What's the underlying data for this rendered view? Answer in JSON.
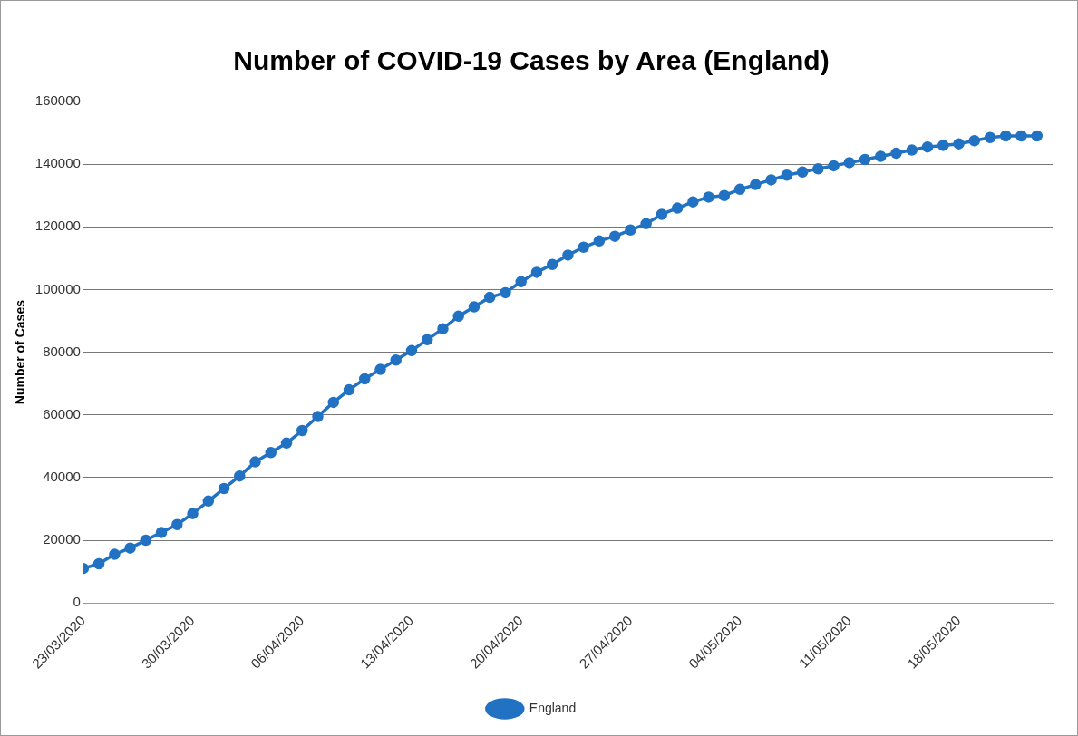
{
  "chart_data": {
    "type": "line",
    "title": "Number of COVID-19 Cases by Area (England)",
    "ylabel": "Number of Cases",
    "x": [
      "2020-03-23",
      "2020-03-24",
      "2020-03-25",
      "2020-03-26",
      "2020-03-27",
      "2020-03-28",
      "2020-03-29",
      "2020-03-30",
      "2020-03-31",
      "2020-04-01",
      "2020-04-02",
      "2020-04-03",
      "2020-04-04",
      "2020-04-05",
      "2020-04-06",
      "2020-04-07",
      "2020-04-08",
      "2020-04-09",
      "2020-04-10",
      "2020-04-11",
      "2020-04-12",
      "2020-04-13",
      "2020-04-14",
      "2020-04-15",
      "2020-04-16",
      "2020-04-17",
      "2020-04-18",
      "2020-04-19",
      "2020-04-20",
      "2020-04-21",
      "2020-04-22",
      "2020-04-23",
      "2020-04-24",
      "2020-04-25",
      "2020-04-26",
      "2020-04-27",
      "2020-04-28",
      "2020-04-29",
      "2020-04-30",
      "2020-05-01",
      "2020-05-02",
      "2020-05-03",
      "2020-05-04",
      "2020-05-05",
      "2020-05-06",
      "2020-05-07",
      "2020-05-08",
      "2020-05-09",
      "2020-05-10",
      "2020-05-11",
      "2020-05-12",
      "2020-05-13",
      "2020-05-14",
      "2020-05-15",
      "2020-05-16",
      "2020-05-17",
      "2020-05-18",
      "2020-05-19",
      "2020-05-20",
      "2020-05-21",
      "2020-05-22",
      "2020-05-23"
    ],
    "series": [
      {
        "name": "England",
        "color": "#2272c3",
        "values": [
          11000,
          12500,
          15500,
          17500,
          20000,
          22500,
          25000,
          28500,
          32500,
          36500,
          40500,
          45000,
          48000,
          51000,
          55000,
          59500,
          64000,
          68000,
          71500,
          74500,
          77500,
          80500,
          84000,
          87500,
          91500,
          94500,
          97500,
          99000,
          102500,
          105500,
          108000,
          111000,
          113500,
          115500,
          117000,
          119000,
          121000,
          124000,
          126000,
          128000,
          129500,
          130000,
          132000,
          133500,
          135000,
          136500,
          137500,
          138500,
          139500,
          140500,
          141500,
          142500,
          143500,
          144500,
          145500,
          146000,
          146500,
          147500,
          148500,
          149000,
          149000,
          149000
        ]
      }
    ],
    "xlim": [
      "2020-03-23",
      "2020-05-24"
    ],
    "xticks": [
      {
        "value": "2020-03-23",
        "label": "23/03/2020"
      },
      {
        "value": "2020-03-30",
        "label": "30/03/2020"
      },
      {
        "value": "2020-04-06",
        "label": "06/04/2020"
      },
      {
        "value": "2020-04-13",
        "label": "13/04/2020"
      },
      {
        "value": "2020-04-20",
        "label": "20/04/2020"
      },
      {
        "value": "2020-04-27",
        "label": "27/04/2020"
      },
      {
        "value": "2020-05-04",
        "label": "04/05/2020"
      },
      {
        "value": "2020-05-11",
        "label": "11/05/2020"
      },
      {
        "value": "2020-05-18",
        "label": "18/05/2020"
      }
    ],
    "ylim": [
      0,
      160000
    ],
    "yticks": [
      0,
      20000,
      40000,
      60000,
      80000,
      100000,
      120000,
      140000,
      160000
    ],
    "grid": "y",
    "legend": "bottom",
    "marker": "circle",
    "line_style": "solid"
  }
}
